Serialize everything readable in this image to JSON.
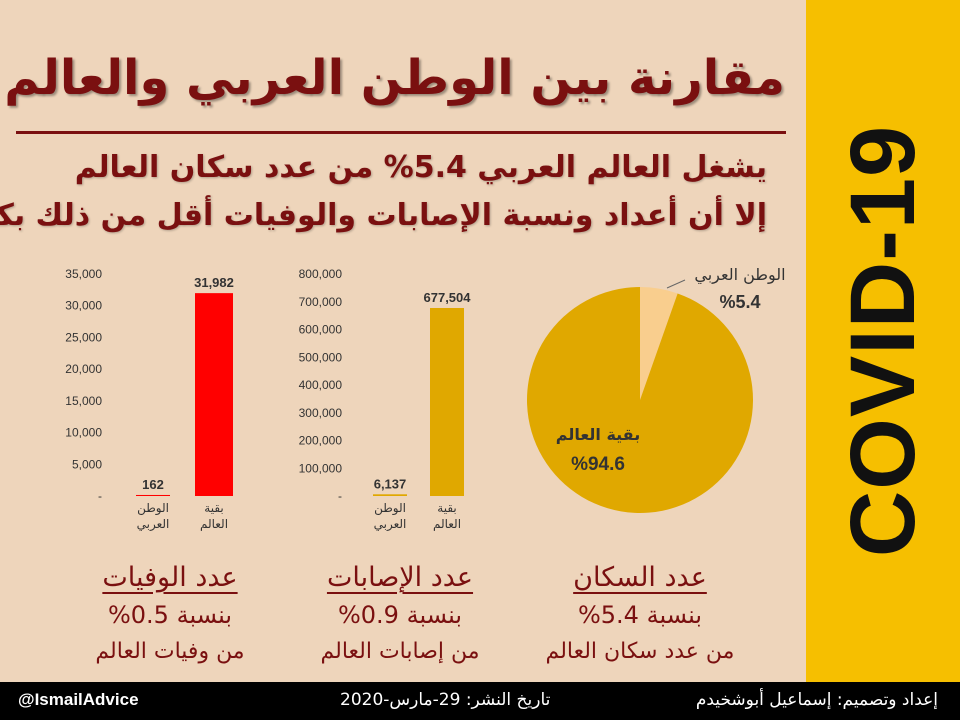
{
  "title": "مقارنة بين الوطن العربي والعالم",
  "subtitle1": "يشغل العالم العربي 5.4% من عدد سكان العالم",
  "subtitle2": "إلا أن أعداد ونسبة الإصابات والوفيات أقل من ذلك بكثير",
  "side_label": "COVID-19",
  "colors": {
    "background": "#eed5bb",
    "accent": "#7a1010",
    "side": "#f6bf00",
    "deaths_bar": "#ff0000",
    "cases_bar": "#e0a800",
    "pie_main": "#e0a800",
    "pie_arab": "#f9ce8e"
  },
  "chart_data": [
    {
      "type": "bar",
      "categories": [
        "الوطن العربي",
        "بقية العالم"
      ],
      "values": [
        162,
        31982
      ],
      "value_labels": [
        "162",
        "31,982"
      ],
      "ylim": [
        0,
        35000
      ],
      "y_ticks": [
        "-",
        "5,000",
        "10,000",
        "15,000",
        "20,000",
        "25,000",
        "30,000",
        "35,000"
      ],
      "grid": false
    },
    {
      "type": "bar",
      "categories": [
        "الوطن العربي",
        "بقية العالم"
      ],
      "values": [
        6137,
        677504
      ],
      "value_labels": [
        "6,137",
        "677,504"
      ],
      "ylim": [
        0,
        800000
      ],
      "y_ticks": [
        "-",
        "100,000",
        "200,000",
        "300,000",
        "400,000",
        "500,000",
        "600,000",
        "700,000",
        "800,000"
      ],
      "grid": false
    },
    {
      "type": "pie",
      "categories": [
        "الوطن العربي",
        "بقية العالم"
      ],
      "values": [
        5.4,
        94.6
      ],
      "value_labels": [
        "%5.4",
        "%94.6"
      ]
    }
  ],
  "stats": [
    {
      "heading": "عدد الوفيات",
      "percent": "بنسبة 0.5%",
      "from": "من وفيات العالم"
    },
    {
      "heading": "عدد الإصابات",
      "percent": "بنسبة 0.9%",
      "from": "من إصابات العالم"
    },
    {
      "heading": "عدد السكان",
      "percent": "بنسبة 5.4%",
      "from": "من عدد سكان العالم"
    }
  ],
  "footer": {
    "handle": "@IsmailAdvice",
    "date": "تاريخ النشر: 29-مارس-2020",
    "credit": "إعداد وتصميم: إسماعيل أبوشخيدم"
  }
}
